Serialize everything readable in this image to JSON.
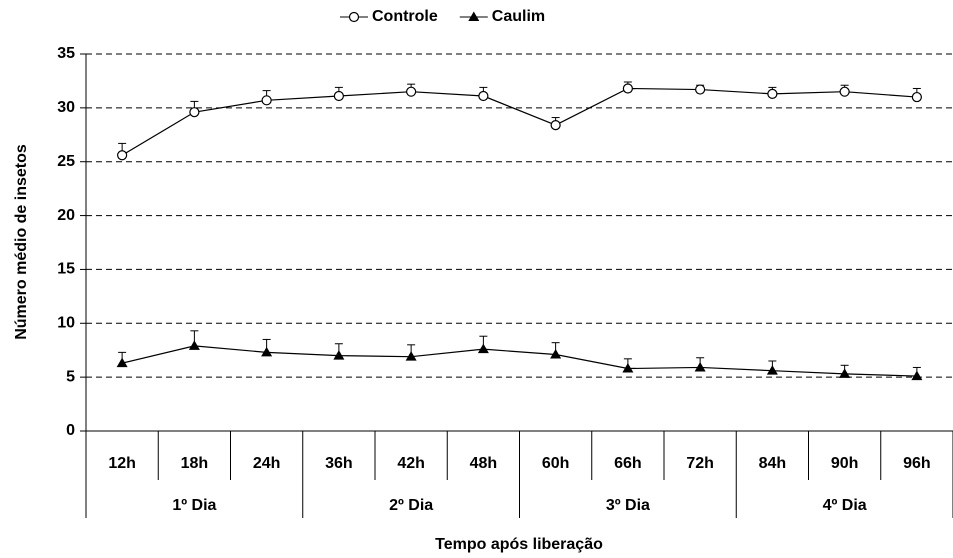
{
  "chart_data": {
    "type": "line",
    "y_label": "Número  médio de insetos",
    "x_label": "Tempo após liberação",
    "categories": [
      "12h",
      "18h",
      "24h",
      "36h",
      "42h",
      "48h",
      "60h",
      "66h",
      "72h",
      "84h",
      "90h",
      "96h"
    ],
    "groups": [
      "1º Dia",
      "2º Dia",
      "3º Dia",
      "4º Dia"
    ],
    "series": [
      {
        "name": "Controle",
        "color": "#000000",
        "marker": "circle",
        "values": [
          25.6,
          29.6,
          30.7,
          31.1,
          31.5,
          31.1,
          28.4,
          31.8,
          31.7,
          31.3,
          31.5,
          31.0
        ],
        "errors": [
          1.1,
          1.0,
          0.9,
          0.8,
          0.7,
          0.8,
          0.7,
          0.6,
          0.4,
          0.6,
          0.6,
          0.8
        ]
      },
      {
        "name": "Caulim",
        "color": "#000000",
        "marker": "triangle",
        "values": [
          6.3,
          7.9,
          7.3,
          7.0,
          6.9,
          7.6,
          7.1,
          5.8,
          5.9,
          5.6,
          5.3,
          5.1
        ],
        "errors": [
          1.0,
          1.4,
          1.2,
          1.1,
          1.1,
          1.2,
          1.1,
          0.9,
          0.9,
          0.9,
          0.8,
          0.8
        ]
      }
    ],
    "ylim": [
      0,
      35
    ],
    "yticks": [
      0,
      5,
      10,
      15,
      20,
      25,
      30,
      35
    ],
    "grid": true
  }
}
